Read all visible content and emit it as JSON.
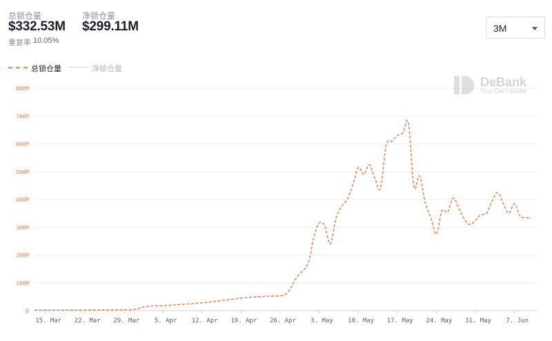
{
  "header": {
    "tvl_label": "总锁仓量",
    "tvl_value": "$332.53M",
    "net_label": "净锁仓量",
    "net_value": "$299.11M",
    "ratio_label": "重复率",
    "ratio_value": "10.05%"
  },
  "range_selector": {
    "value": "3M"
  },
  "legend": [
    {
      "label": "总锁仓量",
      "color": "#e8845a",
      "style": "dashed"
    },
    {
      "label": "净锁仓量",
      "color": "#cfd2d8",
      "style": "solid"
    }
  ],
  "watermark": {
    "brand": "DeBank",
    "tagline": "Your DeFi Wallet"
  },
  "colors": {
    "series": "#e8845a",
    "grid": "#ebedf0",
    "axis_text": "#e8845a",
    "x_text": "#555b66"
  },
  "chart_data": {
    "type": "line",
    "y_ticks": [
      "0",
      "100M",
      "200M",
      "300M",
      "400M",
      "500M",
      "600M",
      "700M",
      "800M"
    ],
    "ylim": [
      0,
      800
    ],
    "y_unit": "M",
    "x_ticks": [
      "15. Mar",
      "22. Mar",
      "29. Mar",
      "5. Apr",
      "12. Apr",
      "19. Apr",
      "26. Apr",
      "3. May",
      "10. May",
      "17. May",
      "24. May",
      "31. May",
      "7. Jun"
    ],
    "x_start": "2021-03-13",
    "x_end": "2021-06-11",
    "grid": true,
    "legend_position": "top-left",
    "series": [
      {
        "name": "总锁仓量",
        "style": "dashed",
        "points": [
          [
            "2021-03-13",
            2
          ],
          [
            "2021-03-20",
            2
          ],
          [
            "2021-03-27",
            3
          ],
          [
            "2021-03-31",
            5
          ],
          [
            "2021-04-02",
            15
          ],
          [
            "2021-04-05",
            18
          ],
          [
            "2021-04-08",
            22
          ],
          [
            "2021-04-12",
            28
          ],
          [
            "2021-04-15",
            35
          ],
          [
            "2021-04-19",
            45
          ],
          [
            "2021-04-22",
            50
          ],
          [
            "2021-04-24",
            52
          ],
          [
            "2021-04-27",
            60
          ],
          [
            "2021-04-29",
            120
          ],
          [
            "2021-05-01",
            170
          ],
          [
            "2021-05-02",
            260
          ],
          [
            "2021-05-03",
            315
          ],
          [
            "2021-05-04",
            305
          ],
          [
            "2021-05-05",
            240
          ],
          [
            "2021-05-06",
            330
          ],
          [
            "2021-05-07",
            375
          ],
          [
            "2021-05-08",
            400
          ],
          [
            "2021-05-09",
            450
          ],
          [
            "2021-05-10",
            515
          ],
          [
            "2021-05-11",
            490
          ],
          [
            "2021-05-12",
            525
          ],
          [
            "2021-05-13",
            475
          ],
          [
            "2021-05-14",
            440
          ],
          [
            "2021-05-15",
            595
          ],
          [
            "2021-05-16",
            610
          ],
          [
            "2021-05-17",
            630
          ],
          [
            "2021-05-18",
            640
          ],
          [
            "2021-05-19",
            675
          ],
          [
            "2021-05-20",
            445
          ],
          [
            "2021-05-21",
            485
          ],
          [
            "2021-05-22",
            390
          ],
          [
            "2021-05-23",
            335
          ],
          [
            "2021-05-24",
            275
          ],
          [
            "2021-05-25",
            360
          ],
          [
            "2021-05-26",
            355
          ],
          [
            "2021-05-27",
            405
          ],
          [
            "2021-05-28",
            370
          ],
          [
            "2021-05-29",
            330
          ],
          [
            "2021-05-30",
            310
          ],
          [
            "2021-05-31",
            325
          ],
          [
            "2021-06-01",
            345
          ],
          [
            "2021-06-02",
            350
          ],
          [
            "2021-06-03",
            395
          ],
          [
            "2021-06-04",
            425
          ],
          [
            "2021-06-05",
            385
          ],
          [
            "2021-06-06",
            350
          ],
          [
            "2021-06-07",
            385
          ],
          [
            "2021-06-08",
            340
          ],
          [
            "2021-06-09",
            335
          ],
          [
            "2021-06-10",
            332
          ]
        ]
      }
    ]
  }
}
